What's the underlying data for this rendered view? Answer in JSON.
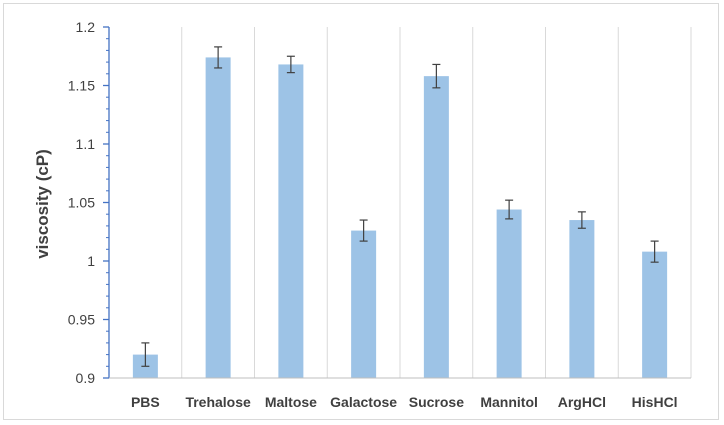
{
  "chart_data": {
    "type": "bar",
    "title": "",
    "xlabel": "",
    "ylabel": "viscosity (cP)",
    "ylim": [
      0.9,
      1.2
    ],
    "yticks": [
      0.9,
      0.95,
      1,
      1.05,
      1.1,
      1.15,
      1.2
    ],
    "ytick_labels": [
      "0.9",
      "0.95",
      "1",
      "1.05",
      "1.1",
      "1.15",
      "1.2"
    ],
    "grid": "vertical",
    "legend": "none",
    "categories": [
      "PBS",
      "Trehalose",
      "Maltose",
      "Galactose",
      "Sucrose",
      "Mannitol",
      "ArgHCl",
      "HisHCl"
    ],
    "values": [
      0.92,
      1.174,
      1.168,
      1.026,
      1.158,
      1.044,
      1.035,
      1.008
    ],
    "errors": [
      0.01,
      0.009,
      0.007,
      0.009,
      0.01,
      0.008,
      0.007,
      0.009
    ],
    "colors": {
      "bar": "#9dc3e6",
      "grid": "#d9d9d9",
      "error": "#404040",
      "axis": "#4472c4"
    }
  }
}
